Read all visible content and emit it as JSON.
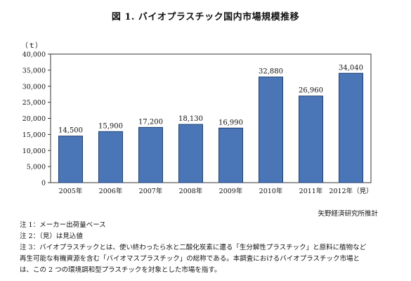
{
  "title": "図 1. バイオプラスチック国内市場規模推移",
  "unit_label": "（ｔ）",
  "source": "矢野経済研究所推計",
  "notes": {
    "n1": "注 1：メーカー出荷量ベース",
    "n2": "注 2：（見）は見込値",
    "n3a": "注 3：バイオプラスチックとは、使い終わったら水と二酸化炭素に還る「生分解性プラスチック」と原料に植物など",
    "n3b": "再生可能な有機資源を含む「バイオマスプラスチック」の総称である。本調査におけるバイオプラスチック市場と",
    "n3c": "は、この 2 つの環境調和型プラスチックを対象とした市場を指す。"
  },
  "chart_data": {
    "type": "bar",
    "categories": [
      "2005年",
      "2006年",
      "2007年",
      "2008年",
      "2009年",
      "2010年",
      "2011年",
      "2012年（見）"
    ],
    "values": [
      14500,
      15900,
      17200,
      18130,
      16990,
      32880,
      26960,
      34040
    ],
    "value_labels": [
      "14,500",
      "15,900",
      "17,200",
      "18,130",
      "16,990",
      "32,880",
      "26,960",
      "34,040"
    ],
    "yticks": [
      "0",
      "5,000",
      "10,000",
      "15,000",
      "20,000",
      "25,000",
      "30,000",
      "35,000",
      "40,000"
    ],
    "ylim": [
      0,
      40000
    ],
    "ylabel": "（ｔ）",
    "bar_color": "#4a76b8",
    "bar_edge_color": "#1f3f6e"
  }
}
